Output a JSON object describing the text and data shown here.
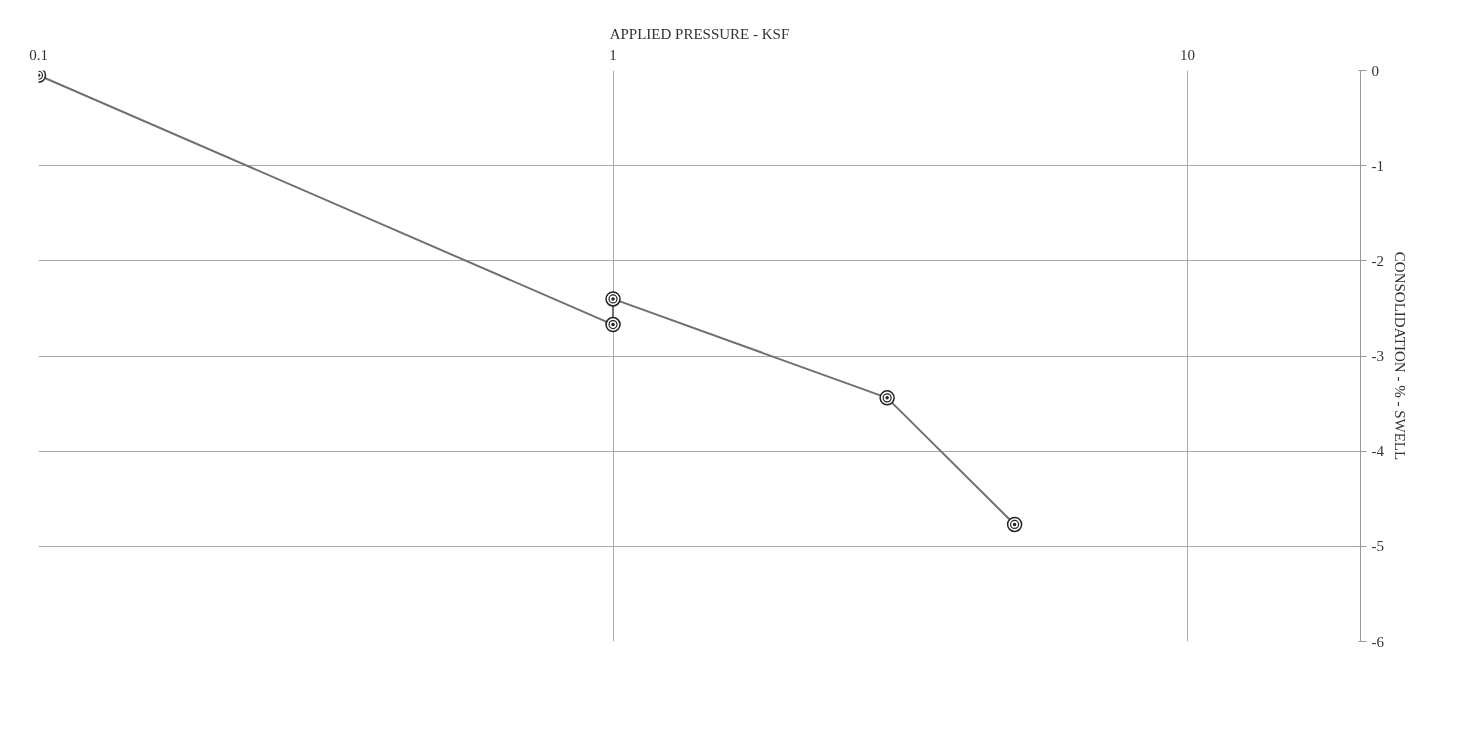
{
  "chart_data": {
    "type": "line",
    "xlabel": "APPLIED PRESSURE - KSF",
    "ylabel": "CONSOLIDATION - % - SWELL",
    "x": [
      0.1,
      1,
      1,
      3,
      5
    ],
    "series": [
      {
        "color": "#707070",
        "values": [
          -0.05,
          -2.67,
          -2.4,
          -3.44,
          -4.77
        ]
      }
    ],
    "log": "x",
    "xlim": [
      0.1,
      20
    ],
    "xticks": [
      0.1,
      1,
      10
    ],
    "ylim": [
      -6,
      0
    ],
    "yticks": [
      0,
      -1,
      -2,
      -3,
      -4,
      -5,
      -6
    ],
    "grid": true,
    "marker": "circle",
    "line_style": "solid"
  }
}
